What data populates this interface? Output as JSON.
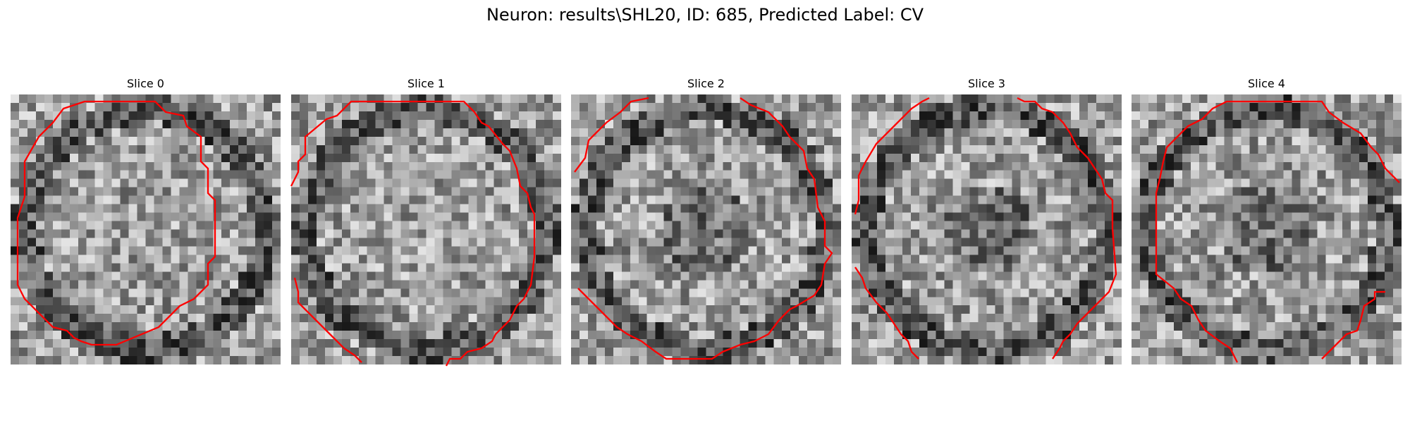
{
  "figure": {
    "title": "Neuron: results\\SHL20, ID: 685, Predicted Label: CV"
  },
  "colors": {
    "background": "#ffffff",
    "contour": "#ff0000",
    "colormap": "gray"
  },
  "panels": [
    {
      "title": "Slice 0",
      "image": "grayscale-microscopy-slice",
      "overlay": "red-segmentation-contour"
    },
    {
      "title": "Slice 1",
      "image": "grayscale-microscopy-slice",
      "overlay": "red-segmentation-contour"
    },
    {
      "title": "Slice 2",
      "image": "grayscale-microscopy-slice",
      "overlay": "red-segmentation-contour"
    },
    {
      "title": "Slice 3",
      "image": "grayscale-microscopy-slice",
      "overlay": "red-segmentation-contour"
    },
    {
      "title": "Slice 4",
      "image": "grayscale-microscopy-slice",
      "overlay": "red-segmentation-contour"
    }
  ]
}
